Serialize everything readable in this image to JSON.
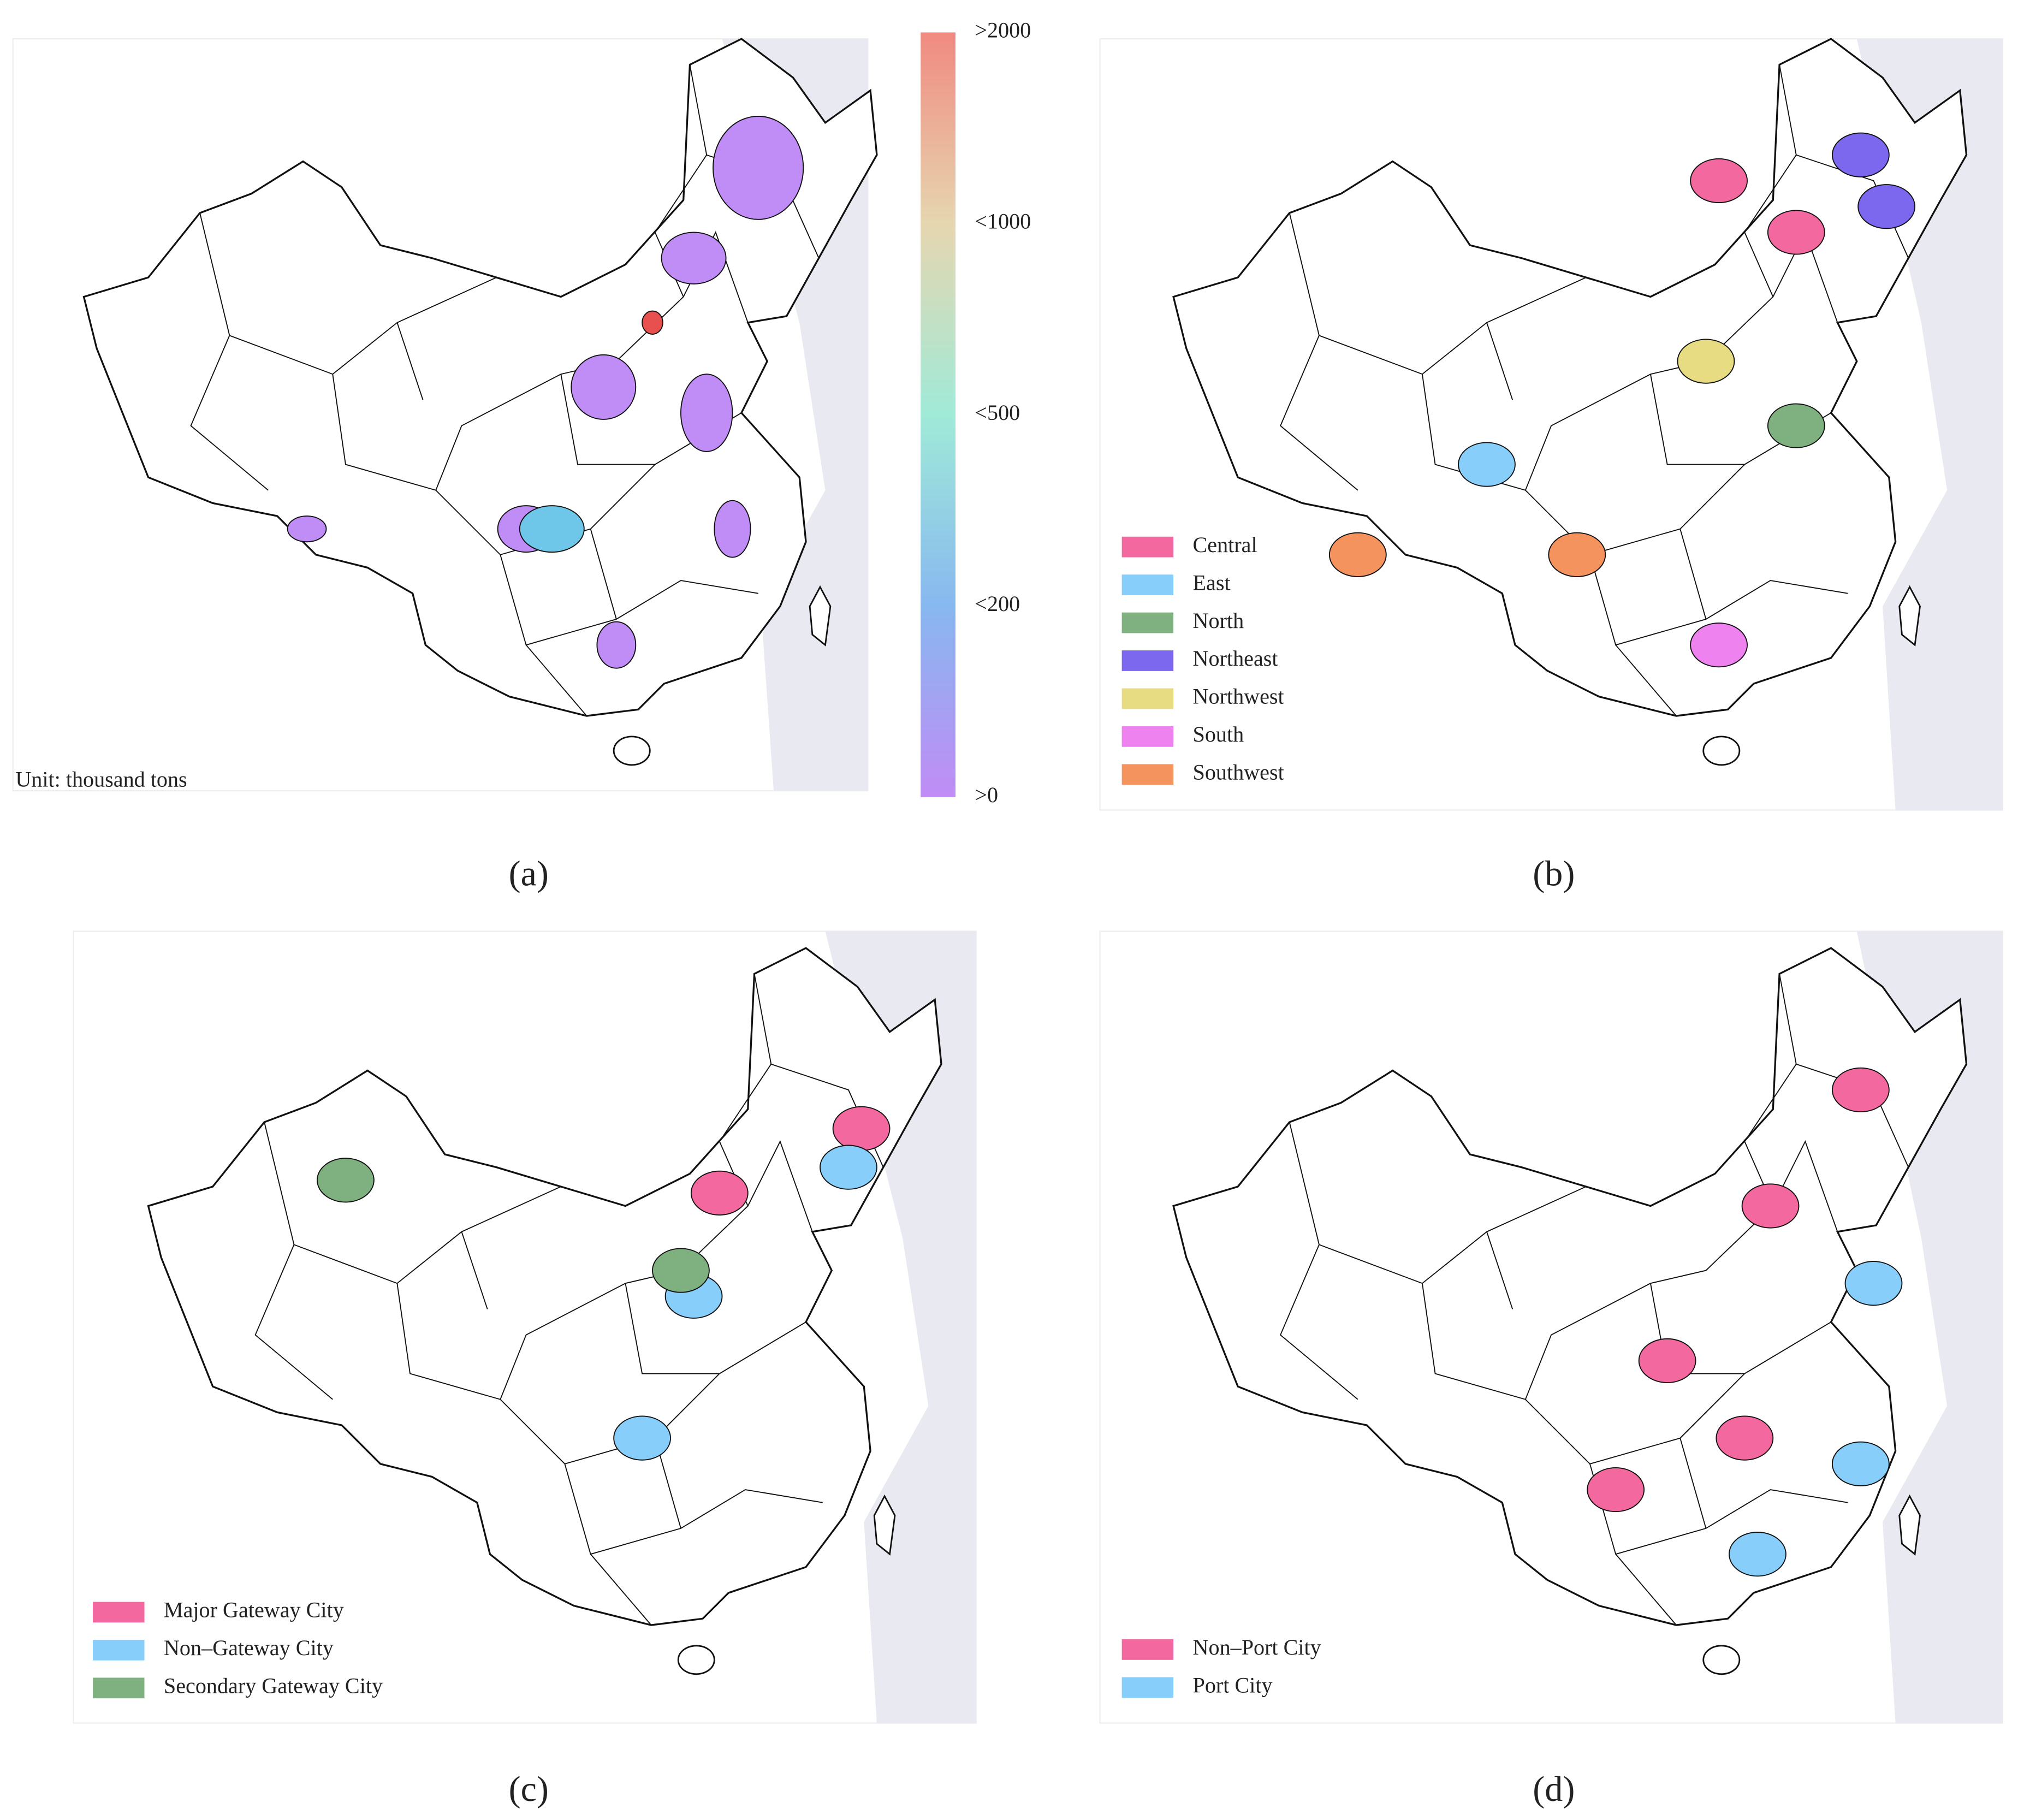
{
  "panels": [
    {
      "label": "(a)",
      "colorbar_labels": [
        ">2000",
        "<1000",
        "<500",
        "<200",
        ">0"
      ],
      "unit": "Unit: thousand tons"
    },
    {
      "label": "(b)",
      "legend": [
        {
          "name": "Central",
          "color": "#f2689f"
        },
        {
          "name": "East",
          "color": "#87cefa"
        },
        {
          "name": "North",
          "color": "#7fb07f"
        },
        {
          "name": "Northeast",
          "color": "#7b68ee"
        },
        {
          "name": "Northwest",
          "color": "#e8dc82"
        },
        {
          "name": "South",
          "color": "#ee82ee"
        },
        {
          "name": "Southwest",
          "color": "#f5935e"
        }
      ]
    },
    {
      "label": "(c)",
      "legend": [
        {
          "name": "Major Gateway City",
          "color": "#f2689f"
        },
        {
          "name": "Non–Gateway City",
          "color": "#87cefa"
        },
        {
          "name": "Secondary Gateway City",
          "color": "#7fb07f"
        }
      ]
    },
    {
      "label": "(d)",
      "legend": [
        {
          "name": "Non–Port City",
          "color": "#f2689f"
        },
        {
          "name": "Port City",
          "color": "#87cefa"
        }
      ]
    }
  ]
}
